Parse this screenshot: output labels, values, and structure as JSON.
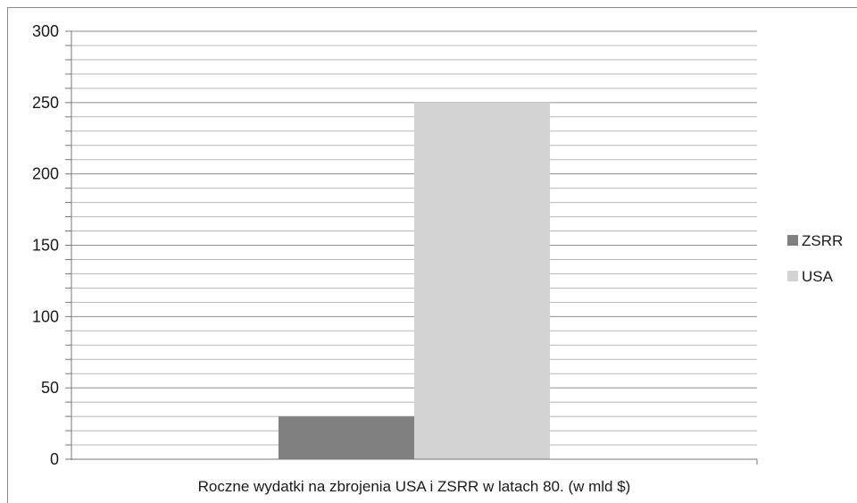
{
  "chart_data": {
    "type": "bar",
    "categories": [
      "Roczne wydatki na zbrojenia USA i ZSRR w latach 80. (w mld $)"
    ],
    "series": [
      {
        "name": "ZSRR",
        "values": [
          30
        ],
        "color": "#808080"
      },
      {
        "name": "USA",
        "values": [
          250
        ],
        "color": "#d3d3d3"
      }
    ],
    "ylim": [
      0,
      300
    ],
    "y_ticks": [
      0,
      50,
      100,
      150,
      200,
      250,
      300
    ],
    "minor_step": 10,
    "grid": true,
    "legend": "right"
  }
}
